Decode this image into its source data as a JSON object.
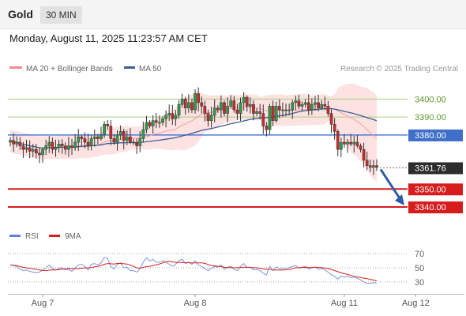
{
  "header": {
    "instrument": "Gold",
    "timeframe": "30 MIN"
  },
  "timestamp": "Monday, August 11, 2025 11:23:57 AM CET",
  "legend": [
    {
      "label": "MA 20 + Bollinger Bands",
      "color": "#f08b8b"
    },
    {
      "label": "MA 50",
      "color": "#3f5e99"
    }
  ],
  "copyright": "Research © 2025 Trading Central",
  "chart_data": [
    {
      "type": "candlestick",
      "ylim": [
        3333,
        3412
      ],
      "x_labels": [
        {
          "label": "Aug 7",
          "i": 10
        },
        {
          "label": "Aug 8",
          "i": 57
        },
        {
          "label": "Aug 11",
          "i": 103
        },
        {
          "label": "Aug 12",
          "i": 125
        }
      ],
      "price_levels": [
        {
          "value": 3400.0,
          "label": "3400.00",
          "style": "green"
        },
        {
          "value": 3390.0,
          "label": "3390.00",
          "style": "green"
        },
        {
          "value": 3380.0,
          "label": "3380.00",
          "style": "blue"
        },
        {
          "value": 3361.76,
          "label": "3361.76",
          "style": "current"
        },
        {
          "value": 3350.0,
          "label": "3350.00",
          "style": "red"
        },
        {
          "value": 3340.0,
          "label": "3340.00",
          "style": "red"
        }
      ],
      "projection": {
        "from": 3361.76,
        "to": 3340.0
      },
      "closes": [
        3377,
        3375,
        3376,
        3374,
        3372,
        3373,
        3371,
        3372,
        3370,
        3369,
        3372,
        3374,
        3376,
        3372,
        3373,
        3375,
        3374,
        3372,
        3374,
        3373,
        3376,
        3379,
        3378,
        3376,
        3374,
        3378,
        3379,
        3378,
        3380,
        3386,
        3385,
        3378,
        3376,
        3380,
        3382,
        3377,
        3379,
        3376,
        3376,
        3374,
        3378,
        3383,
        3387,
        3385,
        3388,
        3387,
        3387,
        3389,
        3391,
        3392,
        3389,
        3391,
        3397,
        3400,
        3395,
        3398,
        3394,
        3403,
        3398,
        3396,
        3392,
        3388,
        3391,
        3395,
        3394,
        3398,
        3392,
        3396,
        3399,
        3394,
        3392,
        3398,
        3401,
        3396,
        3397,
        3392,
        3393,
        3392,
        3385,
        3383,
        3396,
        3388,
        3396,
        3394,
        3394,
        3394,
        3394,
        3398,
        3399,
        3396,
        3397,
        3398,
        3394,
        3397,
        3398,
        3395,
        3397,
        3396,
        3392,
        3386,
        3382,
        3372,
        3376,
        3375,
        3376,
        3375,
        3376,
        3374,
        3372,
        3366,
        3363,
        3362,
        3363,
        3362
      ]
    },
    {
      "type": "line",
      "legend": [
        {
          "label": "RSI",
          "color": "#5b7fd6"
        },
        {
          "label": "9MA",
          "color": "#d62020"
        }
      ],
      "ylim": [
        22,
        78
      ],
      "levels": [
        70,
        50,
        30
      ],
      "rsi": [
        54,
        53,
        52,
        48,
        46,
        47,
        45,
        44,
        43,
        44,
        47,
        50,
        54,
        49,
        47,
        49,
        50,
        47,
        48,
        45,
        50,
        54,
        55,
        52,
        47,
        55,
        56,
        54,
        57,
        65,
        63,
        52,
        48,
        55,
        57,
        50,
        51,
        46,
        46,
        44,
        49,
        58,
        64,
        60,
        62,
        58,
        58,
        60,
        58,
        55,
        52,
        55,
        60,
        62,
        56,
        58,
        55,
        60,
        54,
        52,
        49,
        46,
        49,
        52,
        51,
        54,
        48,
        51,
        52,
        48,
        46,
        52,
        56,
        50,
        51,
        47,
        48,
        46,
        42,
        40,
        52,
        46,
        51,
        49,
        49,
        49,
        50,
        52,
        53,
        50,
        51,
        52,
        48,
        50,
        51,
        48,
        49,
        47,
        44,
        40,
        38,
        34,
        38,
        37,
        38,
        36,
        37,
        35,
        33,
        30,
        28,
        28,
        29,
        28
      ]
    }
  ]
}
